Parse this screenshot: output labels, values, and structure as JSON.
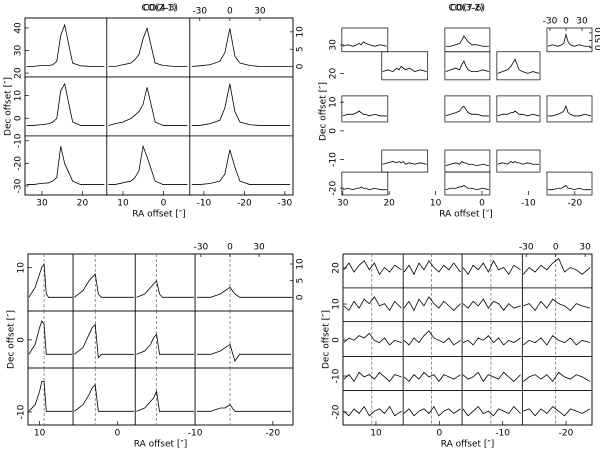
{
  "chart_data": [
    {
      "type": "spectral_map",
      "title": "CO(2-1)",
      "xlabel": "RA offset  [″]",
      "ylabel": "Dec offset  [″]",
      "xlim": [
        34.2,
        -32
      ],
      "ylim": [
        -34,
        44.4
      ],
      "xticks": [
        30,
        20,
        10,
        0,
        -10,
        -20,
        -30
      ],
      "yticks": [
        40,
        30,
        20,
        10,
        0,
        -10,
        -20,
        -30
      ],
      "ra_edges": [
        14,
        -6.5
      ],
      "dec_edges": [
        18.3,
        -7.8
      ],
      "vlim": [
        -40,
        63
      ],
      "ilim": [
        -3,
        14
      ],
      "vticks": [
        -30,
        0,
        30
      ],
      "iticks": [
        0,
        5,
        10
      ],
      "velocity": [
        -38,
        -30,
        -20,
        -10,
        -5,
        0,
        5,
        10,
        20,
        30,
        45,
        60
      ],
      "spectra": [
        [
          [
            0,
            0,
            0.3,
            0.3,
            0.5,
            1.5,
            9,
            12,
            1,
            0.2,
            0,
            0
          ],
          [
            0,
            0,
            0.5,
            1,
            2,
            3.5,
            8,
            11,
            1,
            0.3,
            0,
            0
          ],
          [
            0,
            0.2,
            0.5,
            1.5,
            4,
            11,
            3,
            1,
            0.3,
            0,
            0,
            0
          ]
        ],
        [
          [
            0,
            0,
            0.2,
            0.5,
            1,
            2,
            10,
            12,
            1,
            0,
            0,
            0
          ],
          [
            0,
            0.5,
            1,
            2,
            3,
            4,
            6,
            11,
            1,
            0,
            0,
            0
          ],
          [
            0,
            0,
            0.5,
            1.5,
            5,
            12,
            4,
            1,
            0.2,
            0,
            0,
            0
          ]
        ],
        [
          [
            0,
            0,
            0.3,
            0.5,
            1,
            2,
            11,
            6,
            1,
            0,
            0,
            0
          ],
          [
            0,
            0,
            0.5,
            1,
            2,
            4,
            11,
            8,
            1,
            0,
            0,
            0
          ],
          [
            0,
            0,
            0.3,
            1,
            3,
            10,
            5,
            1,
            0,
            0,
            0,
            0
          ]
        ]
      ]
    },
    {
      "type": "spectral_map",
      "title": "CO(3-2)",
      "xlabel": "RA offset  [″]",
      "ylabel": "Dec offset  [″]",
      "xlim": [
        30.6,
        -23.7
      ],
      "ylim": [
        -22.4,
        35.9
      ],
      "xticks": [
        30,
        20,
        10,
        0,
        -10,
        -20
      ],
      "yticks": [
        30,
        20,
        10,
        0,
        -10,
        -20
      ],
      "vlim": [
        -35.6,
        48.8
      ],
      "ilim": [
        -2.7,
        13.3
      ],
      "vticks": [
        -30,
        0,
        30
      ],
      "iticks": [
        0,
        5,
        10
      ],
      "velocity": [
        -34,
        -25,
        -15,
        -8,
        -4,
        0,
        4,
        8,
        15,
        25,
        35,
        47
      ],
      "cells": [
        {
          "ra": [
            30.2,
            20.3
          ],
          "dec": [
            27.6,
            35.9
          ],
          "values": [
            1,
            2,
            1,
            2,
            3,
            2,
            4,
            3,
            2,
            1,
            2,
            1
          ]
        },
        {
          "ra": [
            8.0,
            -1.7
          ],
          "dec": [
            27.6,
            35.9
          ],
          "values": [
            1,
            1,
            2,
            3,
            5,
            8,
            6,
            4,
            2,
            2,
            1,
            1
          ]
        },
        {
          "ra": [
            -14.0,
            -23.7
          ],
          "dec": [
            27.6,
            35.9
          ],
          "values": [
            1,
            2,
            1,
            2,
            3,
            9,
            4,
            2,
            1,
            2,
            1,
            1
          ]
        },
        {
          "ra": [
            21.6,
            11.7
          ],
          "dec": [
            17.8,
            27.6
          ],
          "values": [
            2,
            3,
            2,
            4,
            3,
            5,
            4,
            3,
            4,
            2,
            3,
            2
          ]
        },
        {
          "ra": [
            8.0,
            -1.7
          ],
          "dec": [
            17.8,
            27.6
          ],
          "values": [
            2,
            3,
            4,
            3,
            6,
            8,
            5,
            3,
            2,
            2,
            3,
            2
          ]
        },
        {
          "ra": [
            -3.2,
            -12.5
          ],
          "dec": [
            17.8,
            27.6
          ],
          "values": [
            1,
            2,
            3,
            5,
            7,
            9,
            6,
            3,
            2,
            1,
            2,
            1
          ]
        },
        {
          "ra": [
            30.2,
            20.3
          ],
          "dec": [
            3.1,
            12.2
          ],
          "values": [
            1,
            2,
            2,
            3,
            4,
            3,
            2,
            2,
            1,
            2,
            1,
            1
          ]
        },
        {
          "ra": [
            8.0,
            -1.7
          ],
          "dec": [
            3.1,
            12.2
          ],
          "values": [
            1,
            2,
            3,
            4,
            6,
            7,
            5,
            3,
            2,
            2,
            1,
            1
          ]
        },
        {
          "ra": [
            -3.2,
            -12.5
          ],
          "dec": [
            3.1,
            12.2
          ],
          "values": [
            1,
            2,
            2,
            3,
            3,
            4,
            3,
            2,
            2,
            1,
            2,
            1
          ]
        },
        {
          "ra": [
            -14.0,
            -23.7
          ],
          "dec": [
            3.1,
            12.2
          ],
          "values": [
            1,
            1,
            2,
            3,
            4,
            7,
            3,
            2,
            1,
            1,
            2,
            1
          ]
        },
        {
          "ra": [
            21.6,
            11.7
          ],
          "dec": [
            -14.4,
            -6.7
          ],
          "values": [
            3,
            4,
            5,
            4,
            5,
            4,
            5,
            3,
            4,
            3,
            4,
            3
          ]
        },
        {
          "ra": [
            8.0,
            -1.7
          ],
          "dec": [
            -14.4,
            -6.7
          ],
          "values": [
            2,
            3,
            4,
            3,
            5,
            4,
            4,
            3,
            3,
            2,
            3,
            2
          ]
        },
        {
          "ra": [
            -3.2,
            -12.5
          ],
          "dec": [
            -14.4,
            -6.7
          ],
          "values": [
            3,
            4,
            3,
            5,
            4,
            5,
            4,
            4,
            3,
            4,
            3,
            3
          ]
        },
        {
          "ra": [
            30.2,
            20.3
          ],
          "dec": [
            -22.4,
            -14.4
          ],
          "values": [
            1,
            2,
            1,
            2,
            2,
            3,
            2,
            2,
            1,
            2,
            1,
            1
          ]
        },
        {
          "ra": [
            8.0,
            -1.7
          ],
          "dec": [
            -22.4,
            -14.4
          ],
          "values": [
            1,
            2,
            2,
            3,
            3,
            4,
            3,
            2,
            2,
            1,
            2,
            1
          ]
        },
        {
          "ra": [
            -14.0,
            -23.7
          ],
          "dec": [
            -22.4,
            -14.4
          ],
          "values": [
            1,
            1,
            2,
            2,
            3,
            4,
            2,
            2,
            1,
            2,
            1,
            1
          ]
        }
      ]
    },
    {
      "type": "spectral_map",
      "title": "CO(4-3)",
      "xlabel": "RA offset  [″]",
      "ylabel": "Dec offset  [″]",
      "xlim": [
        11.5,
        -22.6
      ],
      "ylim": [
        -11.8,
        11.9
      ],
      "xticks": [
        10,
        0,
        -10,
        -20
      ],
      "yticks": [
        10,
        0,
        -10
      ],
      "ra_edges": [
        5.7,
        -2.3,
        -10
      ],
      "dec_edges": [
        4.0,
        -3.9
      ],
      "vlim": [
        -36,
        65
      ],
      "ilim": [
        -4.1,
        13
      ],
      "vticks": [
        -30,
        0,
        30
      ],
      "iticks": [
        0,
        5,
        10
      ],
      "marker_velocity": 0,
      "velocity": [
        -34,
        -20,
        -10,
        -5,
        0,
        5,
        10,
        20,
        30,
        40,
        50,
        63
      ],
      "spectra": [
        [
          [
            0,
            3,
            7,
            9,
            10,
            1,
            0,
            0,
            0,
            0,
            0,
            0
          ],
          [
            0,
            2,
            5,
            6,
            7,
            1,
            0,
            0,
            0,
            0,
            0,
            0
          ],
          [
            0,
            1,
            3,
            4,
            5,
            1,
            0,
            0,
            0,
            0,
            0,
            0
          ],
          [
            0,
            0,
            1,
            2,
            3,
            1,
            0,
            0,
            0,
            0,
            0,
            0
          ]
        ],
        [
          [
            0,
            3,
            8,
            10,
            9,
            0,
            0,
            0,
            0,
            0,
            0,
            0
          ],
          [
            0,
            2,
            6,
            8,
            9,
            -1,
            0,
            0,
            0,
            0,
            0,
            0
          ],
          [
            0,
            1,
            3,
            5,
            6,
            0,
            0,
            0,
            0,
            0,
            0,
            0
          ],
          [
            0,
            0,
            1,
            2,
            3,
            -2,
            0,
            0,
            0,
            0,
            0,
            0
          ]
        ],
        [
          [
            0,
            2,
            6,
            9,
            9,
            0,
            0,
            0,
            0,
            0,
            0,
            0
          ],
          [
            0,
            2,
            5,
            7,
            8,
            0,
            0,
            0,
            0,
            0,
            0,
            0
          ],
          [
            0,
            1,
            3,
            4,
            6,
            0,
            0,
            0,
            0,
            0,
            0,
            0
          ],
          [
            0,
            0,
            1,
            1,
            2,
            0,
            0,
            0,
            0,
            0,
            0,
            0
          ]
        ]
      ]
    },
    {
      "type": "spectral_map",
      "title": "CO(7-6)",
      "xlabel": "RA offset  [″]",
      "ylabel": "Dec offset  [″]",
      "xlim": [
        15.2,
        -24.1
      ],
      "ylim": [
        -23.6,
        23.9
      ],
      "xticks": [
        10,
        0,
        -10,
        -20
      ],
      "yticks": [
        20,
        10,
        0,
        -10,
        -20
      ],
      "ra_edges": [
        5.7,
        -3.6,
        -13.1
      ],
      "dec_edges": [
        14.5,
        5.1,
        -4.6,
        -14.0
      ],
      "vlim": [
        -34,
        37
      ],
      "ilim": [
        -6,
        9
      ],
      "vticks": [
        -30,
        0,
        30
      ],
      "marker_velocity": 0,
      "velocity": [
        -33,
        -27,
        -21,
        -15,
        -9,
        -3,
        3,
        9,
        15,
        21,
        27,
        35
      ],
      "spectra": [
        [
          [
            2,
            5,
            1,
            4,
            6,
            2,
            5,
            0,
            3,
            1,
            4,
            2
          ],
          [
            1,
            4,
            0,
            5,
            2,
            6,
            3,
            1,
            4,
            2,
            5,
            1
          ],
          [
            3,
            0,
            4,
            2,
            5,
            1,
            6,
            2,
            3,
            0,
            4,
            2
          ],
          [
            0,
            3,
            1,
            4,
            2,
            5,
            7,
            1,
            3,
            2,
            0,
            3
          ]
        ],
        [
          [
            1,
            -1,
            3,
            0,
            4,
            2,
            5,
            1,
            2,
            -1,
            3,
            0
          ],
          [
            0,
            3,
            -1,
            4,
            1,
            5,
            2,
            0,
            3,
            1,
            -1,
            2
          ],
          [
            2,
            0,
            3,
            1,
            4,
            0,
            3,
            2,
            -1,
            2,
            0,
            1
          ],
          [
            1,
            2,
            -1,
            3,
            0,
            4,
            2,
            1,
            -1,
            2,
            1,
            0
          ]
        ],
        [
          [
            0,
            2,
            1,
            3,
            2,
            4,
            1,
            0,
            2,
            -1,
            1,
            0
          ],
          [
            1,
            -1,
            2,
            0,
            3,
            5,
            2,
            1,
            0,
            2,
            -1,
            1
          ],
          [
            0,
            1,
            -1,
            2,
            1,
            3,
            0,
            2,
            -1,
            1,
            0,
            2
          ],
          [
            -1,
            1,
            0,
            2,
            -1,
            3,
            1,
            0,
            2,
            -1,
            1,
            0
          ]
        ],
        [
          [
            -1,
            1,
            -2,
            2,
            0,
            1,
            -1,
            2,
            0,
            -2,
            1,
            0
          ],
          [
            0,
            -2,
            1,
            -1,
            2,
            0,
            1,
            -2,
            1,
            0,
            -1,
            1
          ],
          [
            1,
            -1,
            0,
            2,
            -2,
            1,
            0,
            -1,
            2,
            0,
            -2,
            1
          ],
          [
            -2,
            0,
            1,
            -1,
            1,
            -2,
            2,
            0,
            -1,
            1,
            0,
            -2
          ]
        ],
        [
          [
            0,
            -2,
            1,
            -1,
            2,
            -2,
            0,
            1,
            -1,
            2,
            -2,
            0
          ],
          [
            -1,
            1,
            -2,
            0,
            1,
            -1,
            2,
            -2,
            0,
            1,
            -1,
            1
          ],
          [
            1,
            -2,
            0,
            2,
            -1,
            0,
            -2,
            1,
            0,
            -1,
            2,
            -1
          ],
          [
            0,
            1,
            -2,
            1,
            -1,
            2,
            0,
            -2,
            1,
            0,
            -1,
            1
          ]
        ]
      ]
    }
  ]
}
